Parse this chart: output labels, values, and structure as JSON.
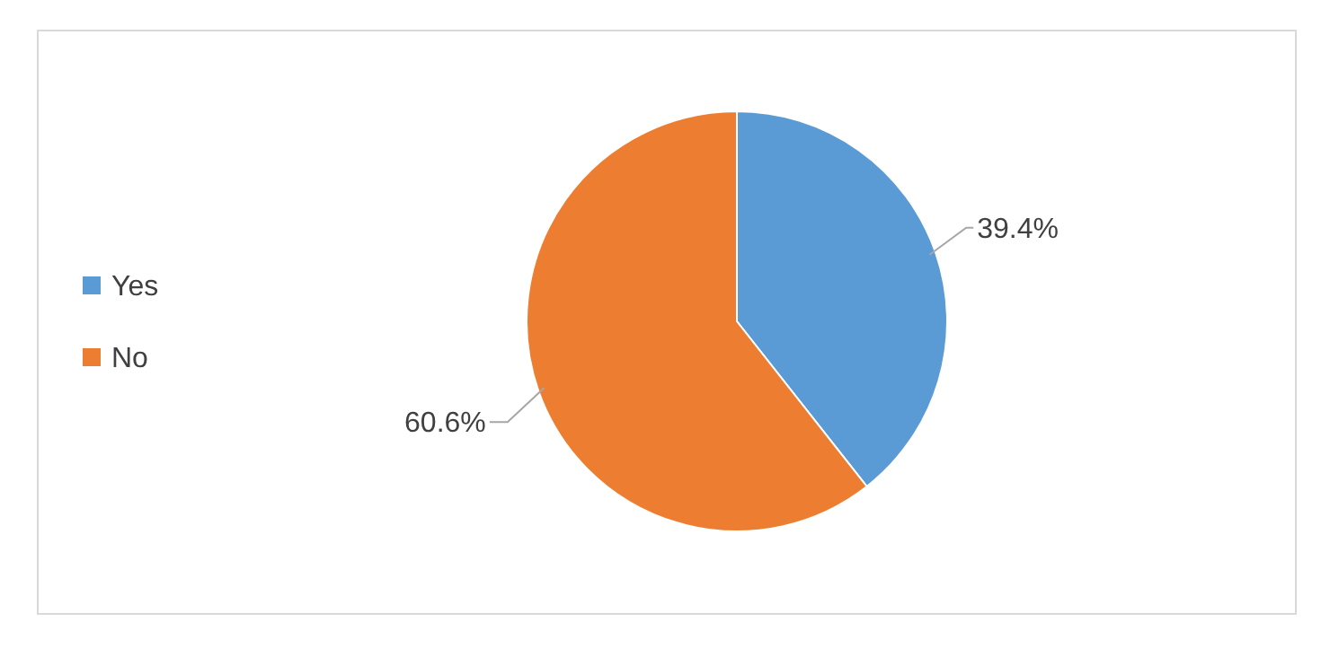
{
  "chart_data": {
    "type": "pie",
    "categories": [
      "Yes",
      "No"
    ],
    "values": [
      39.4,
      60.6
    ],
    "colors": [
      "#5b9bd5",
      "#ed7d31"
    ],
    "value_labels": [
      "39.4%",
      "60.6%"
    ],
    "legend": "left"
  }
}
